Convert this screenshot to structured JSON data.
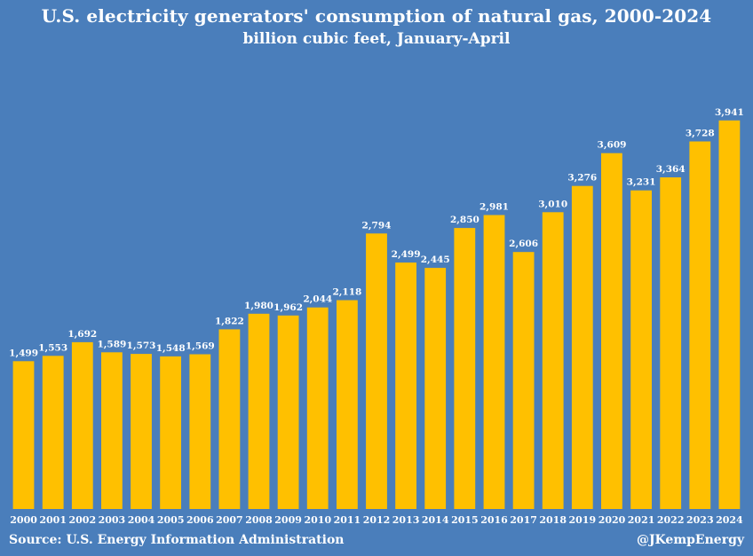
{
  "chart_data": {
    "type": "bar",
    "title": "U.S. electricity generators' consumption of natural gas, 2000-2024",
    "subtitle": "billion cubic feet, January-April",
    "categories": [
      "2000",
      "2001",
      "2002",
      "2003",
      "2004",
      "2005",
      "2006",
      "2007",
      "2008",
      "2009",
      "2010",
      "2011",
      "2012",
      "2013",
      "2014",
      "2015",
      "2016",
      "2017",
      "2018",
      "2019",
      "2020",
      "2021",
      "2022",
      "2023",
      "2024"
    ],
    "values": [
      1499,
      1553,
      1692,
      1589,
      1573,
      1548,
      1569,
      1822,
      1980,
      1962,
      2044,
      2118,
      2794,
      2499,
      2445,
      2850,
      2981,
      2606,
      3010,
      3276,
      3609,
      3231,
      3364,
      3728,
      3941
    ],
    "value_labels": [
      "1,499",
      "1,553",
      "1,692",
      "1,589",
      "1,573",
      "1,548",
      "1,569",
      "1,822",
      "1,980",
      "1,962",
      "2,044",
      "2,118",
      "2,794",
      "2,499",
      "2,445",
      "2,850",
      "2,981",
      "2,606",
      "3,010",
      "3,276",
      "3,609",
      "3,231",
      "3,364",
      "3,728",
      "3,941"
    ],
    "xlabel": "",
    "ylabel": "",
    "ylim": [
      0,
      4200
    ],
    "grid": false,
    "bar_color": "#ffc000",
    "background_color": "#4a7ebb"
  },
  "footer": {
    "source": "Source: U.S. Energy Information Administration",
    "handle": "@JKempEnergy"
  }
}
